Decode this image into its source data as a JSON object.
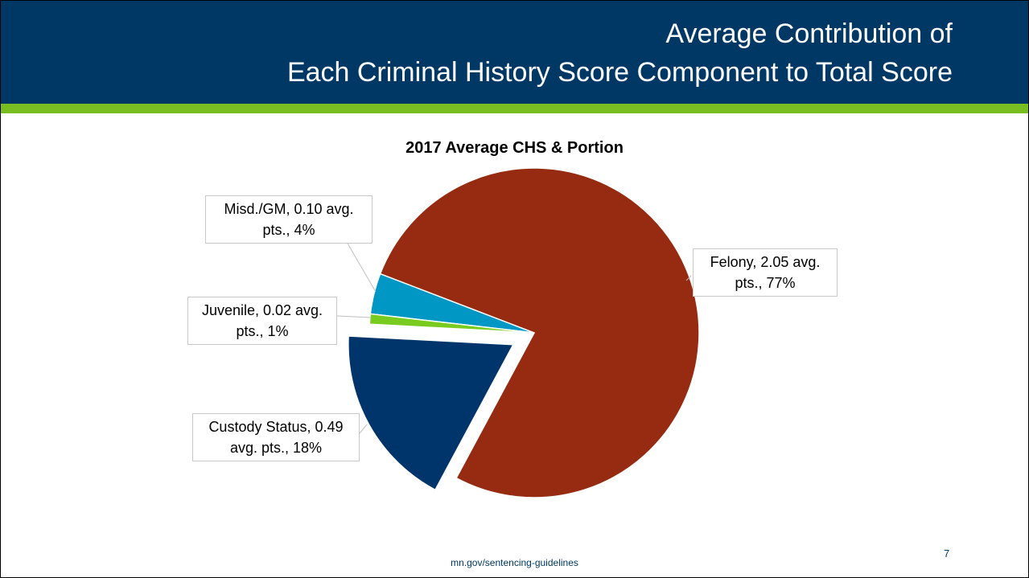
{
  "slide": {
    "title_lines": [
      "Average Contribution of",
      "Each Criminal History Score Component to Total Score"
    ],
    "footer": "mn.gov/sentencing-guidelines",
    "page_number": 7
  },
  "chart_data": {
    "type": "pie",
    "title": "2017 Average CHS & Portion",
    "values": [
      77,
      18,
      1,
      4
    ],
    "value_labels": [
      "Felony, 2.05 avg. pts., 77%",
      "Custody Status, 0.49 avg. pts., 18%",
      "Juvenile, 0.02 avg. pts., 1%",
      "Misd./GM, 0.10 avg. pts., 4%"
    ],
    "colors": [
      "#962b11",
      "#00356b",
      "#7acb1f",
      "#0097c4"
    ]
  }
}
